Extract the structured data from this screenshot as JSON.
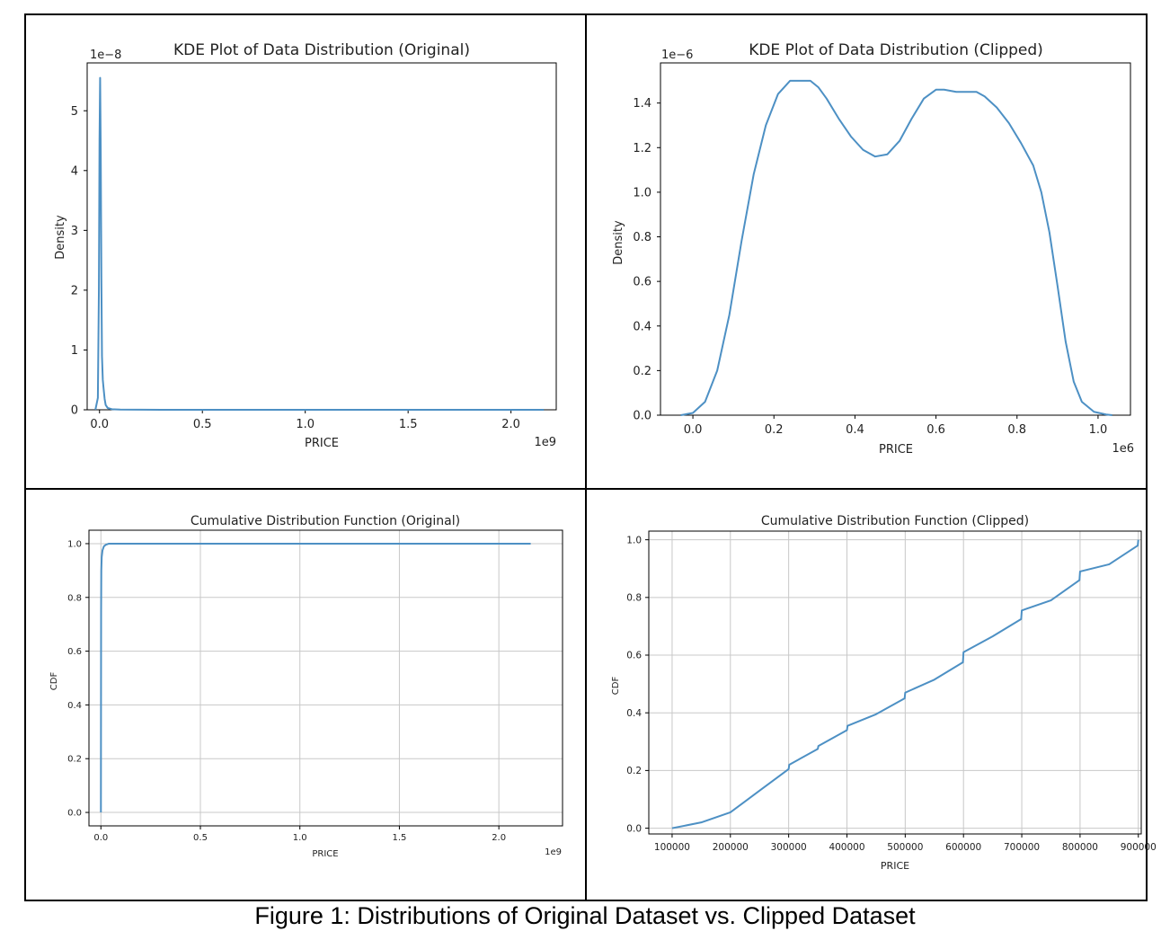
{
  "figure": {
    "caption": "Figure 1: Distributions of Original Dataset vs. Clipped Dataset"
  },
  "chart_data": [
    {
      "id": "kde-original",
      "type": "line",
      "title": "KDE Plot of Data Distribution (Original)",
      "xlabel": "PRICE",
      "ylabel": "Density",
      "x_offset": "1e9",
      "y_offset": "1e−8",
      "xlim": [
        -0.06,
        2.22
      ],
      "ylim": [
        0,
        5.8
      ],
      "xticks": [
        0.0,
        0.5,
        1.0,
        1.5,
        2.0
      ],
      "xtick_labels": [
        "0.0",
        "0.5",
        "1.0",
        "1.5",
        "2.0"
      ],
      "yticks": [
        0,
        1,
        2,
        3,
        4,
        5
      ],
      "ytick_labels": [
        "0",
        "1",
        "2",
        "3",
        "4",
        "5"
      ],
      "grid": false,
      "color": "#4d90c4",
      "series": [
        {
          "x": [
            -0.02,
            -0.008,
            -0.003,
            0.0,
            0.003,
            0.006,
            0.009,
            0.012,
            0.016,
            0.02,
            0.025,
            0.03,
            0.04,
            0.06,
            0.1,
            0.3,
            1.0,
            2.16
          ],
          "y": [
            0.0,
            0.2,
            2.0,
            4.5,
            5.55,
            4.3,
            2.2,
            0.9,
            0.5,
            0.35,
            0.18,
            0.08,
            0.03,
            0.01,
            0.003,
            0.0,
            0.0,
            0.0
          ]
        }
      ]
    },
    {
      "id": "kde-clipped",
      "type": "line",
      "title": "KDE Plot of Data Distribution (Clipped)",
      "xlabel": "PRICE",
      "ylabel": "Density",
      "x_offset": "1e6",
      "y_offset": "1e−6",
      "xlim": [
        -0.08,
        1.08
      ],
      "ylim": [
        0,
        1.58
      ],
      "xticks": [
        0.0,
        0.2,
        0.4,
        0.6,
        0.8,
        1.0
      ],
      "xtick_labels": [
        "0.0",
        "0.2",
        "0.4",
        "0.6",
        "0.8",
        "1.0"
      ],
      "yticks": [
        0.0,
        0.2,
        0.4,
        0.6,
        0.8,
        1.0,
        1.2,
        1.4
      ],
      "ytick_labels": [
        "0.0",
        "0.2",
        "0.4",
        "0.6",
        "0.8",
        "1.0",
        "1.2",
        "1.4"
      ],
      "grid": false,
      "color": "#4d90c4",
      "series": [
        {
          "x": [
            -0.03,
            0.0,
            0.03,
            0.06,
            0.09,
            0.12,
            0.15,
            0.18,
            0.21,
            0.24,
            0.27,
            0.29,
            0.31,
            0.33,
            0.36,
            0.39,
            0.42,
            0.45,
            0.48,
            0.51,
            0.54,
            0.57,
            0.6,
            0.62,
            0.65,
            0.68,
            0.7,
            0.72,
            0.75,
            0.78,
            0.81,
            0.84,
            0.86,
            0.88,
            0.9,
            0.92,
            0.94,
            0.96,
            0.99,
            1.02,
            1.035
          ],
          "y": [
            0.0,
            0.01,
            0.06,
            0.2,
            0.45,
            0.78,
            1.08,
            1.3,
            1.44,
            1.5,
            1.5,
            1.5,
            1.47,
            1.42,
            1.33,
            1.25,
            1.19,
            1.16,
            1.17,
            1.23,
            1.33,
            1.42,
            1.46,
            1.46,
            1.45,
            1.45,
            1.45,
            1.43,
            1.38,
            1.31,
            1.22,
            1.12,
            1.0,
            0.82,
            0.58,
            0.33,
            0.15,
            0.06,
            0.015,
            0.003,
            0.0
          ]
        }
      ]
    },
    {
      "id": "cdf-original",
      "type": "line",
      "title": "Cumulative Distribution Function (Original)",
      "xlabel": "PRICE",
      "ylabel": "CDF",
      "x_offset": "1e9",
      "y_offset": "",
      "xlim": [
        -0.06,
        2.32
      ],
      "ylim": [
        -0.05,
        1.05
      ],
      "xticks": [
        0.0,
        0.5,
        1.0,
        1.5,
        2.0
      ],
      "xtick_labels": [
        "0.0",
        "0.5",
        "1.0",
        "1.5",
        "2.0"
      ],
      "yticks": [
        0.0,
        0.2,
        0.4,
        0.6,
        0.8,
        1.0
      ],
      "ytick_labels": [
        "0.0",
        "0.2",
        "0.4",
        "0.6",
        "0.8",
        "1.0"
      ],
      "grid": true,
      "color": "#4d90c4",
      "series": [
        {
          "x": [
            0.0,
            0.0005,
            0.001,
            0.002,
            0.004,
            0.008,
            0.015,
            0.025,
            0.04,
            2.16
          ],
          "y": [
            0.0,
            0.4,
            0.75,
            0.9,
            0.95,
            0.975,
            0.99,
            0.996,
            1.0,
            1.0
          ]
        }
      ]
    },
    {
      "id": "cdf-clipped",
      "type": "line",
      "title": "Cumulative Distribution Function (Clipped)",
      "xlabel": "PRICE",
      "ylabel": "CDF",
      "x_offset": "",
      "y_offset": "",
      "xlim": [
        60000,
        905000
      ],
      "ylim": [
        -0.02,
        1.03
      ],
      "xticks": [
        100000,
        200000,
        300000,
        400000,
        500000,
        600000,
        700000,
        800000,
        900000
      ],
      "xtick_labels": [
        "100000",
        "200000",
        "300000",
        "400000",
        "500000",
        "600000",
        "700000",
        "800000",
        "900000"
      ],
      "yticks": [
        0.0,
        0.2,
        0.4,
        0.6,
        0.8,
        1.0
      ],
      "ytick_labels": [
        "0.0",
        "0.2",
        "0.4",
        "0.6",
        "0.8",
        "1.0"
      ],
      "grid": true,
      "color": "#4d90c4",
      "series": [
        {
          "x": [
            100000,
            150000,
            200000,
            250000,
            300000,
            301000,
            350000,
            351000,
            400000,
            401000,
            450000,
            499000,
            500000,
            550000,
            599000,
            600000,
            650000,
            699000,
            700000,
            750000,
            799000,
            800000,
            850000,
            899000,
            900000
          ],
          "y": [
            0.0,
            0.02,
            0.055,
            0.13,
            0.205,
            0.22,
            0.275,
            0.285,
            0.34,
            0.355,
            0.395,
            0.45,
            0.47,
            0.515,
            0.575,
            0.61,
            0.665,
            0.725,
            0.755,
            0.79,
            0.86,
            0.89,
            0.915,
            0.98,
            1.0
          ]
        }
      ]
    }
  ]
}
